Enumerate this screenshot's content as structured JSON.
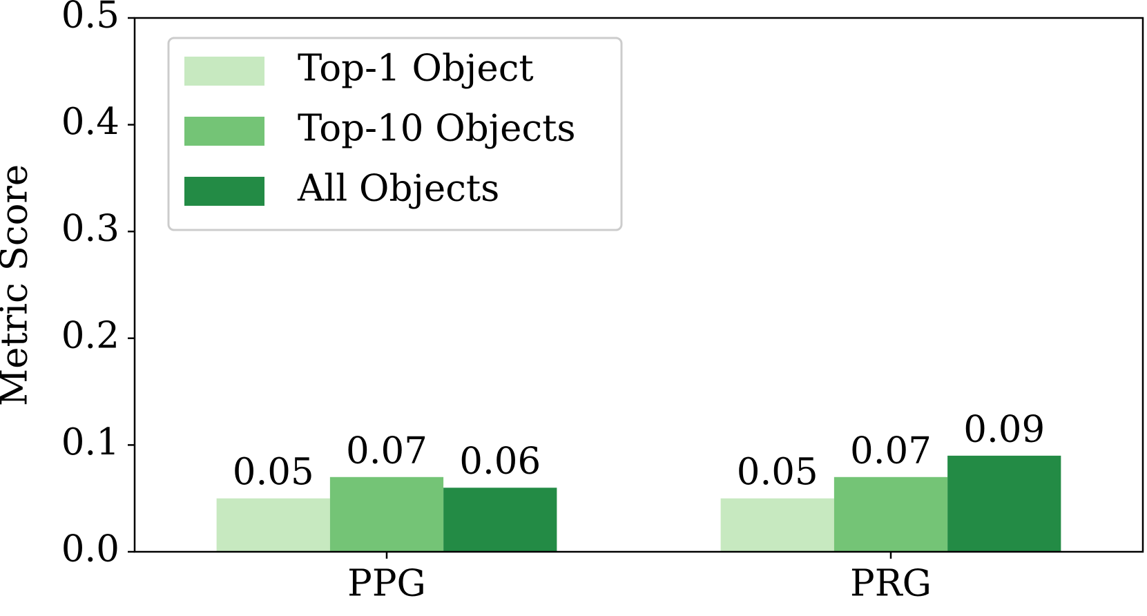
{
  "chart_data": {
    "type": "bar",
    "y_label": "Metric Score",
    "categories": [
      "PPG",
      "PRG"
    ],
    "series": [
      {
        "name": "Top-1 Object",
        "color": "#c7e9c0",
        "values": [
          0.05,
          0.05
        ]
      },
      {
        "name": "Top-10 Objects",
        "color": "#74c476",
        "values": [
          0.07,
          0.07
        ]
      },
      {
        "name": "All Objects",
        "color": "#238b45",
        "values": [
          0.06,
          0.09
        ]
      }
    ],
    "ylim": [
      0,
      0.5
    ],
    "yticks": [
      {
        "value": 0,
        "label": "0.0"
      },
      0.1,
      0.2,
      0.3,
      0.4,
      0.5
    ],
    "legend": "upper left",
    "grid": false
  }
}
